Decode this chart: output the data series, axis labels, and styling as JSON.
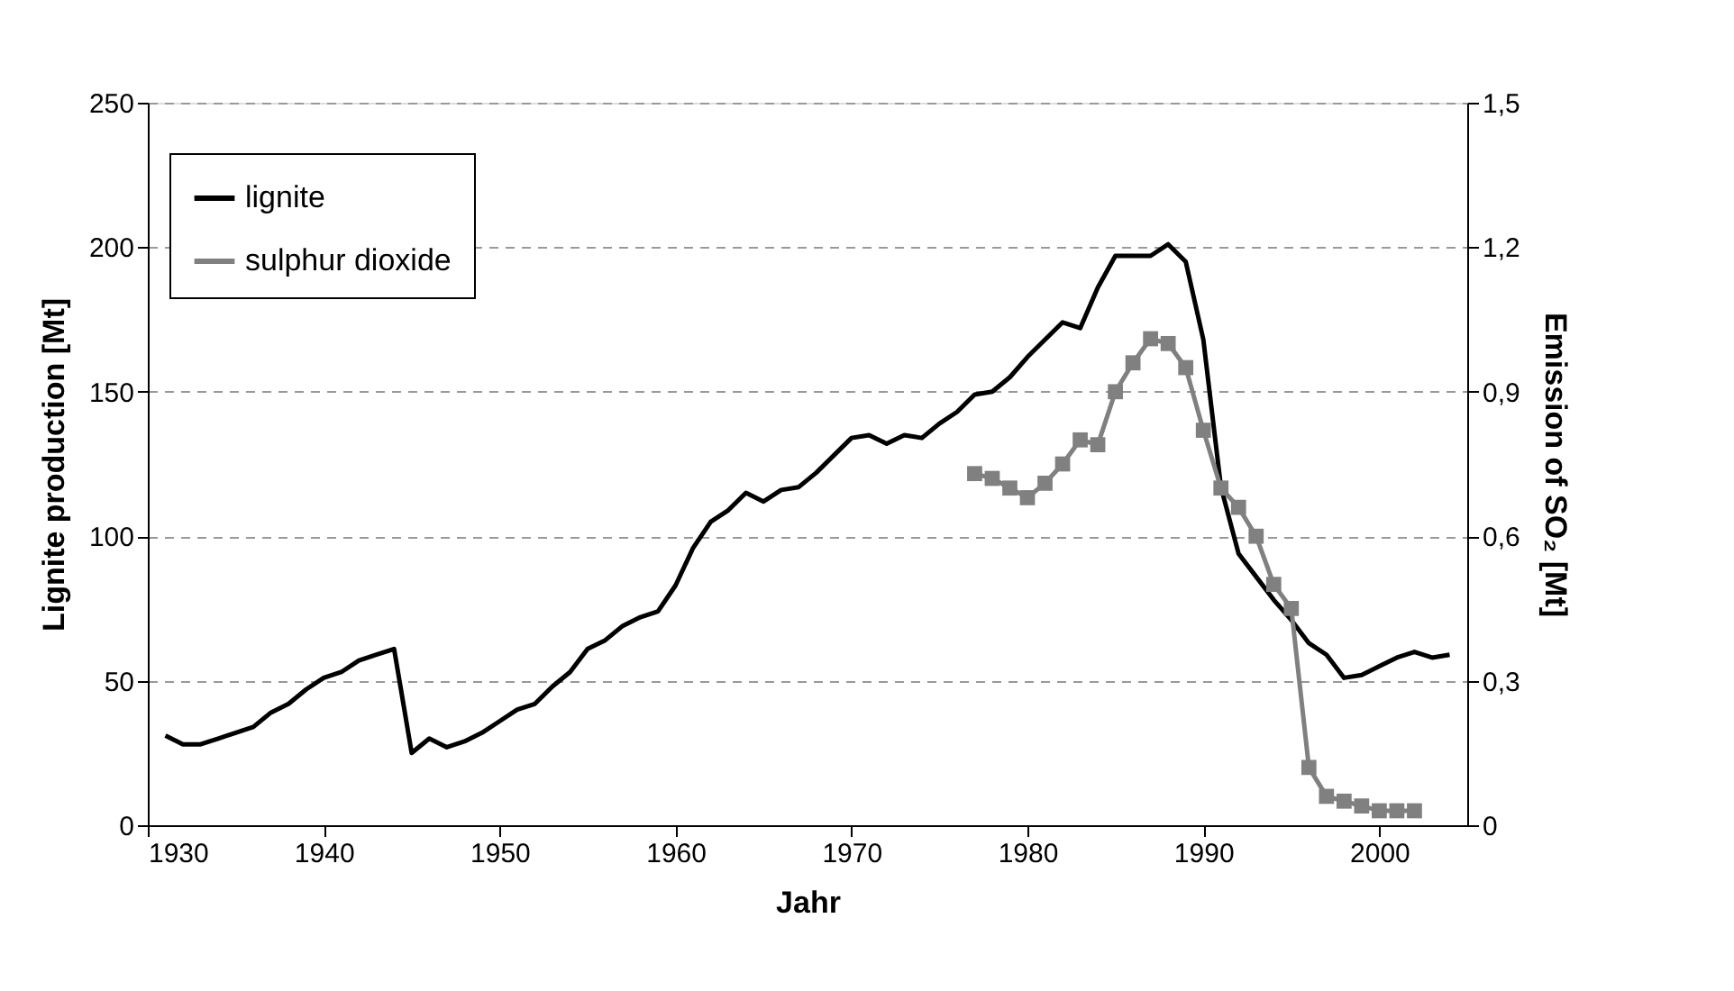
{
  "chart_data": {
    "type": "line",
    "xlabel": "Jahr",
    "ylabel": "Lignite production [Mt]",
    "y2label": "Emission of SO₂ [Mt]",
    "xlim": [
      1930,
      2005
    ],
    "xticks": [
      1930,
      1940,
      1950,
      1960,
      1970,
      1980,
      1990,
      2000
    ],
    "ylim": [
      0,
      250
    ],
    "yticks": [
      0,
      50,
      100,
      150,
      200,
      250
    ],
    "y2lim": [
      0,
      1.5
    ],
    "y2ticks": [
      {
        "value": 0,
        "label": "0"
      },
      {
        "value": 0.3,
        "label": "0,3"
      },
      {
        "value": 0.6,
        "label": "0,6"
      },
      {
        "value": 0.9,
        "label": "0,9"
      },
      {
        "value": 1.2,
        "label": "1,2"
      },
      {
        "value": 1.5,
        "label": "1,5"
      }
    ],
    "grid": "y",
    "legend": "top left",
    "line_style": "solid",
    "series": [
      {
        "name": "lignite",
        "color": "#000000",
        "marker": "none",
        "x": [
          1931,
          1932,
          1933,
          1934,
          1935,
          1936,
          1937,
          1938,
          1939,
          1940,
          1941,
          1942,
          1943,
          1944,
          1945,
          1946,
          1947,
          1948,
          1949,
          1950,
          1951,
          1952,
          1953,
          1954,
          1955,
          1956,
          1957,
          1958,
          1959,
          1960,
          1961,
          1962,
          1963,
          1964,
          1965,
          1966,
          1967,
          1968,
          1969,
          1970,
          1971,
          1972,
          1973,
          1974,
          1975,
          1976,
          1977,
          1978,
          1979,
          1980,
          1981,
          1982,
          1983,
          1984,
          1985,
          1986,
          1987,
          1988,
          1989,
          1990,
          1991,
          1992,
          1993,
          1994,
          1995,
          1996,
          1997,
          1998,
          1999,
          2000,
          2001,
          2002,
          2003,
          2004
        ],
        "values": [
          31,
          28,
          28,
          30,
          32,
          34,
          39,
          42,
          47,
          51,
          53,
          57,
          59,
          61,
          25,
          30,
          27,
          29,
          32,
          36,
          40,
          42,
          48,
          53,
          61,
          64,
          69,
          72,
          74,
          83,
          96,
          105,
          109,
          115,
          112,
          116,
          117,
          122,
          128,
          134,
          135,
          132,
          135,
          134,
          139,
          143,
          149,
          150,
          155,
          162,
          168,
          174,
          172,
          186,
          197,
          197,
          197,
          201,
          195,
          168,
          117,
          94,
          86,
          78,
          71,
          63,
          59,
          51,
          52,
          55,
          58,
          60,
          58,
          59
        ]
      },
      {
        "name": "sulphur dioxide",
        "color": "#808080",
        "marker": "square",
        "axis": "y2",
        "x": [
          1977,
          1978,
          1979,
          1980,
          1981,
          1982,
          1983,
          1984,
          1985,
          1986,
          1987,
          1988,
          1989,
          1990,
          1991,
          1992,
          1993,
          1994,
          1995,
          1996,
          1997,
          1998,
          1999,
          2000,
          2001,
          2002
        ],
        "values": [
          0.73,
          0.72,
          0.7,
          0.68,
          0.71,
          0.75,
          0.8,
          0.79,
          0.9,
          0.96,
          1.01,
          1.0,
          0.95,
          0.82,
          0.7,
          0.66,
          0.6,
          0.5,
          0.45,
          0.12,
          0.06,
          0.05,
          0.04,
          0.03,
          0.03,
          0.03
        ]
      }
    ]
  }
}
